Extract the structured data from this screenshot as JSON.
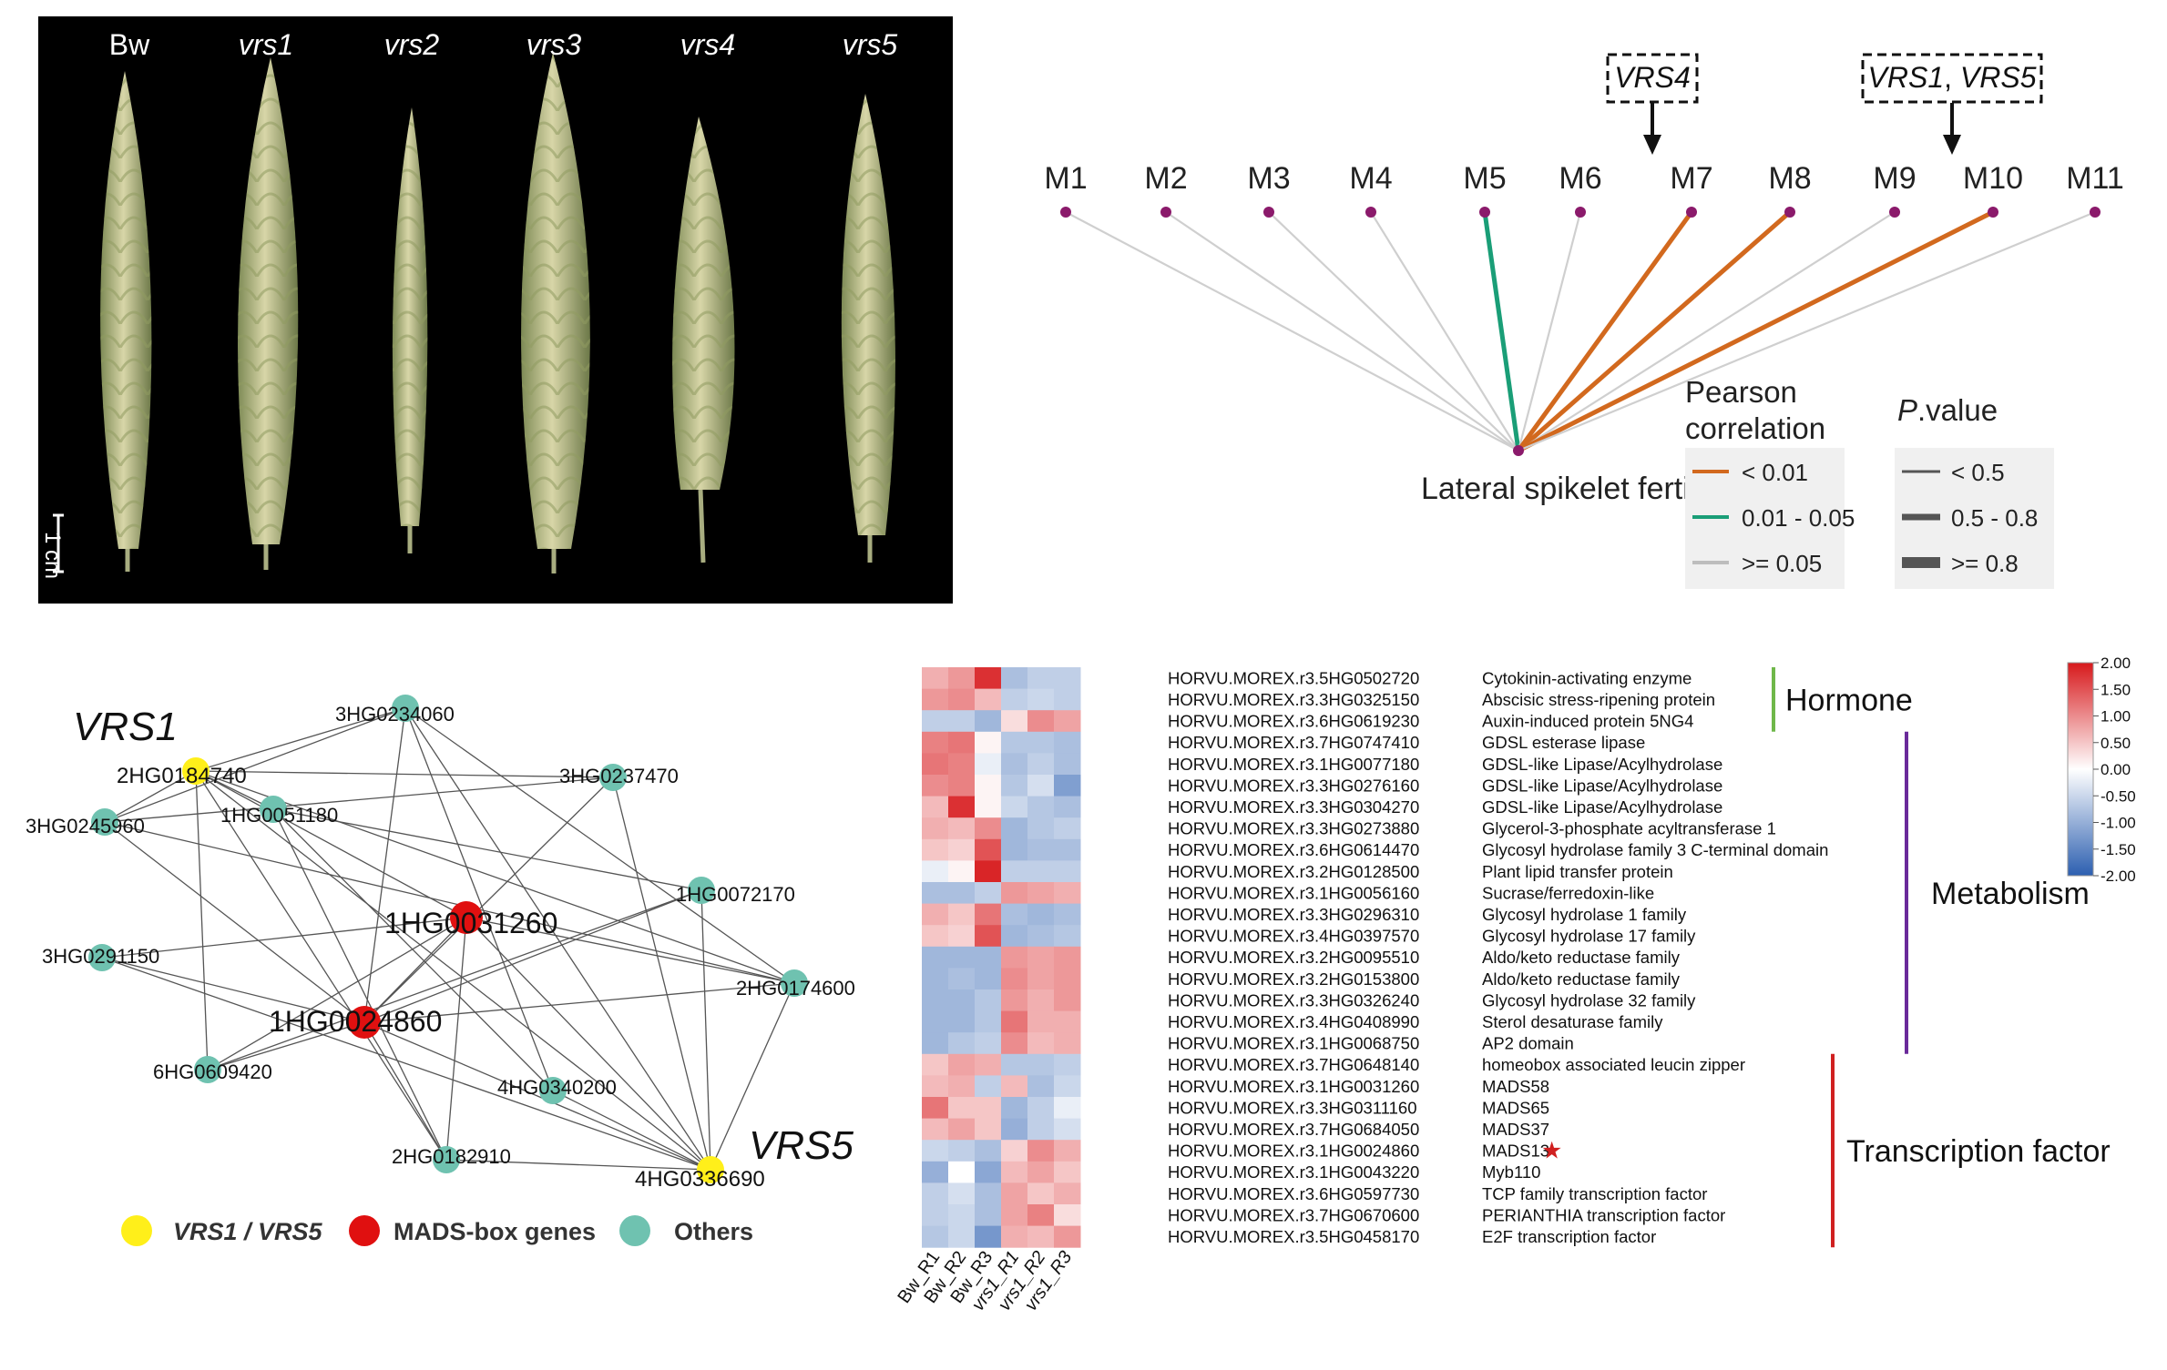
{
  "photo": {
    "labels": [
      "Bw",
      "vrs1",
      "vrs2",
      "vrs3",
      "vrs4",
      "vrs5"
    ],
    "scale_label": "1 cm"
  },
  "correlation": {
    "modules": [
      "M1",
      "M2",
      "M3",
      "M4",
      "M5",
      "M6",
      "M7",
      "M8",
      "M9",
      "M10",
      "M11"
    ],
    "module_links": [
      {
        "module": "M1",
        "pearson": ">= 0.05",
        "p_value": "< 0.5"
      },
      {
        "module": "M2",
        "pearson": ">= 0.05",
        "p_value": "< 0.5"
      },
      {
        "module": "M3",
        "pearson": ">= 0.05",
        "p_value": "< 0.5"
      },
      {
        "module": "M4",
        "pearson": ">= 0.05",
        "p_value": "< 0.5"
      },
      {
        "module": "M5",
        "pearson": "0.01 - 0.05",
        "p_value": "0.5 - 0.8"
      },
      {
        "module": "M6",
        "pearson": ">= 0.05",
        "p_value": "< 0.5"
      },
      {
        "module": "M7",
        "pearson": "< 0.01",
        "p_value": "0.5 - 0.8"
      },
      {
        "module": "M8",
        "pearson": "< 0.01",
        "p_value": "0.5 - 0.8"
      },
      {
        "module": "M9",
        "pearson": ">= 0.05",
        "p_value": "< 0.5"
      },
      {
        "module": "M10",
        "pearson": "< 0.01",
        "p_value": "0.5 - 0.8"
      },
      {
        "module": "M11",
        "pearson": ">= 0.05",
        "p_value": "< 0.5"
      }
    ],
    "trait_label": "Lateral spikelet fertility",
    "box_vrs4": "VRS4",
    "box_vrs1": "VRS1",
    "box_sep": ", ",
    "box_vrs5": "VRS5",
    "legend_pearson_title1": "Pearson",
    "legend_pearson_title2": "correlation",
    "legend_pearson": [
      "< 0.01",
      "0.01 - 0.05",
      ">= 0.05"
    ],
    "legend_p_title_italic": "P",
    "legend_p_title_rest": ".value",
    "legend_p": [
      "< 0.5",
      "0.5 - 0.8",
      ">= 0.8"
    ],
    "colors": {
      "orange": "#d2691e",
      "green": "#1a9e77",
      "grey": "#cfcfcf",
      "node": "#8b1a6b"
    }
  },
  "network": {
    "nodes": [
      {
        "id": "2HG0184740",
        "type": "vrs"
      },
      {
        "id": "3HG0234060",
        "type": "other"
      },
      {
        "id": "3HG0237470",
        "type": "other"
      },
      {
        "id": "1HG0051180",
        "type": "other"
      },
      {
        "id": "3HG0245960",
        "type": "other"
      },
      {
        "id": "1HG0072170",
        "type": "other"
      },
      {
        "id": "1HG0031260",
        "type": "mads"
      },
      {
        "id": "3HG0291150",
        "type": "other"
      },
      {
        "id": "2HG0174600",
        "type": "other"
      },
      {
        "id": "1HG0024860",
        "type": "mads"
      },
      {
        "id": "6HG0609420",
        "type": "other"
      },
      {
        "id": "4HG0340200",
        "type": "other"
      },
      {
        "id": "2HG0182910",
        "type": "other"
      },
      {
        "id": "4HG0336690",
        "type": "vrs"
      }
    ],
    "vrs1_label": "VRS1",
    "vrs5_label": "VRS5",
    "legend": [
      "VRS1 / VRS5",
      "MADS-box genes",
      "Others"
    ],
    "colors": {
      "vrs": "#ffef1a",
      "mads": "#e01010",
      "other": "#6fc2b0"
    }
  },
  "heatmap": {
    "columns": [
      "Bw_R1",
      "Bw_R2",
      "Bw_R3",
      "vrs1_R1",
      "vrs1_R2",
      "vrs1_R3"
    ],
    "rows": [
      {
        "gene": "HORVU.MOREX.r3.5HG0502720",
        "desc": "Cytokinin-activating enzyme",
        "values": [
          0.7,
          0.9,
          1.8,
          -0.8,
          -0.6,
          -0.6
        ]
      },
      {
        "gene": "HORVU.MOREX.r3.3HG0325150",
        "desc": "Abscisic stress-ripening protein",
        "values": [
          0.9,
          1.0,
          0.6,
          -0.6,
          -0.5,
          -0.6
        ]
      },
      {
        "gene": "HORVU.MOREX.r3.6HG0619230",
        "desc": "Auxin-induced protein 5NG4",
        "values": [
          -0.6,
          -0.6,
          -0.9,
          0.3,
          1.0,
          0.8
        ]
      },
      {
        "gene": "HORVU.MOREX.r3.7HG0747410",
        "desc": "GDSL esterase lipase",
        "values": [
          1.1,
          1.2,
          0.1,
          -0.7,
          -0.7,
          -0.8
        ]
      },
      {
        "gene": "HORVU.MOREX.r3.1HG0077180",
        "desc": "GDSL-like Lipase/Acylhydrolase",
        "values": [
          1.2,
          1.1,
          -0.2,
          -0.8,
          -0.6,
          -0.8
        ]
      },
      {
        "gene": "HORVU.MOREX.r3.3HG0276160",
        "desc": "GDSL-like Lipase/Acylhydrolase",
        "values": [
          1.0,
          1.1,
          0.1,
          -0.7,
          -0.4,
          -1.2
        ]
      },
      {
        "gene": "HORVU.MOREX.r3.3HG0304270",
        "desc": "GDSL-like Lipase/Acylhydrolase",
        "values": [
          0.6,
          1.8,
          0.1,
          -0.5,
          -0.7,
          -0.8
        ]
      },
      {
        "gene": "HORVU.MOREX.r3.3HG0273880",
        "desc": "Glycerol-3-phosphate acyltransferase 1",
        "values": [
          0.7,
          0.6,
          1.0,
          -0.9,
          -0.7,
          -0.6
        ]
      },
      {
        "gene": "HORVU.MOREX.r3.6HG0614470",
        "desc": "Glycosyl hydrolase family 3 C-terminal domain",
        "values": [
          0.5,
          0.4,
          1.5,
          -0.9,
          -0.8,
          -0.8
        ]
      },
      {
        "gene": "HORVU.MOREX.r3.2HG0128500",
        "desc": "Plant lipid transfer protein",
        "values": [
          -0.2,
          0.1,
          1.9,
          -0.6,
          -0.6,
          -0.6
        ]
      },
      {
        "gene": "HORVU.MOREX.r3.1HG0056160",
        "desc": "Sucrase/ferredoxin-like",
        "values": [
          -0.8,
          -0.8,
          -0.6,
          0.9,
          0.8,
          0.7
        ]
      },
      {
        "gene": "HORVU.MOREX.r3.3HG0296310",
        "desc": "Glycosyl hydrolase 1 family",
        "values": [
          0.7,
          0.5,
          1.2,
          -0.8,
          -0.9,
          -0.8
        ]
      },
      {
        "gene": "HORVU.MOREX.r3.4HG0397570",
        "desc": "Glycosyl hydrolase 17 family",
        "values": [
          0.5,
          0.4,
          1.5,
          -0.9,
          -0.8,
          -0.7
        ]
      },
      {
        "gene": "HORVU.MOREX.r3.2HG0095510",
        "desc": "Aldo/keto reductase family",
        "values": [
          -0.9,
          -0.9,
          -0.9,
          0.9,
          0.8,
          0.9
        ]
      },
      {
        "gene": "HORVU.MOREX.r3.2HG0153800",
        "desc": "Aldo/keto reductase family",
        "values": [
          -0.9,
          -0.8,
          -0.9,
          1.0,
          0.8,
          0.9
        ]
      },
      {
        "gene": "HORVU.MOREX.r3.3HG0326240",
        "desc": "Glycosyl hydrolase 32 family",
        "values": [
          -0.9,
          -0.9,
          -0.7,
          0.9,
          0.7,
          0.9
        ]
      },
      {
        "gene": "HORVU.MOREX.r3.4HG0408990",
        "desc": "Sterol desaturase family",
        "values": [
          -0.9,
          -0.9,
          -0.7,
          1.2,
          0.7,
          0.7
        ]
      },
      {
        "gene": "HORVU.MOREX.r3.1HG0068750",
        "desc": "AP2 domain",
        "values": [
          -0.9,
          -0.7,
          -0.6,
          1.0,
          0.6,
          0.7
        ]
      },
      {
        "gene": "HORVU.MOREX.r3.7HG0648140",
        "desc": "homeobox associated leucin zipper",
        "values": [
          0.5,
          0.8,
          0.7,
          -0.7,
          -0.7,
          -0.6
        ]
      },
      {
        "gene": "HORVU.MOREX.r3.1HG0031260",
        "desc": "MADS58",
        "values": [
          0.6,
          0.7,
          -0.6,
          0.6,
          -0.8,
          -0.5
        ]
      },
      {
        "gene": "HORVU.MOREX.r3.3HG0311160",
        "desc": "MADS65",
        "values": [
          1.2,
          0.5,
          0.5,
          -0.9,
          -0.6,
          -0.2
        ]
      },
      {
        "gene": "HORVU.MOREX.r3.7HG0684050",
        "desc": "MADS37",
        "values": [
          0.6,
          0.8,
          0.5,
          -1.0,
          -0.6,
          -0.4
        ]
      },
      {
        "gene": "HORVU.MOREX.r3.1HG0024860",
        "desc": "MADS13",
        "values": [
          -0.5,
          -0.6,
          -0.8,
          0.4,
          1.0,
          0.7
        ]
      },
      {
        "gene": "HORVU.MOREX.r3.1HG0043220",
        "desc": "Myb110",
        "values": [
          -1.0,
          0.0,
          -1.1,
          0.6,
          0.8,
          0.5
        ]
      },
      {
        "gene": "HORVU.MOREX.r3.6HG0597730",
        "desc": "TCP family transcription factor",
        "values": [
          -0.6,
          -0.4,
          -0.8,
          0.8,
          0.5,
          0.7
        ]
      },
      {
        "gene": "HORVU.MOREX.r3.7HG0670600",
        "desc": "PERIANTHIA transcription factor",
        "values": [
          -0.6,
          -0.5,
          -0.8,
          0.8,
          1.1,
          0.3
        ]
      },
      {
        "gene": "HORVU.MOREX.r3.5HG0458170",
        "desc": "E2F transcription factor",
        "values": [
          -0.7,
          -0.5,
          -1.3,
          0.7,
          0.6,
          0.9
        ]
      }
    ],
    "star_row": "MADS13",
    "star_glyph": "★",
    "groups": [
      {
        "label": "Hormone",
        "start": 0,
        "end": 2,
        "color": "#6fb84a"
      },
      {
        "label": "Metabolism",
        "start": 3,
        "end": 17,
        "color": "#6a2a9a"
      },
      {
        "label": "Transcription factor",
        "start": 18,
        "end": 26,
        "color": "#d02020"
      }
    ],
    "colorbar_ticks": [
      "2.00",
      "1.50",
      "1.00",
      "0.50",
      "0.00",
      "-0.50",
      "-1.00",
      "-1.50",
      "-2.00"
    ],
    "colorbar_range": [
      -2,
      2
    ],
    "colors": {
      "high": "#d7191c",
      "mid": "#ffffff",
      "low": "#2c5fb0"
    }
  }
}
